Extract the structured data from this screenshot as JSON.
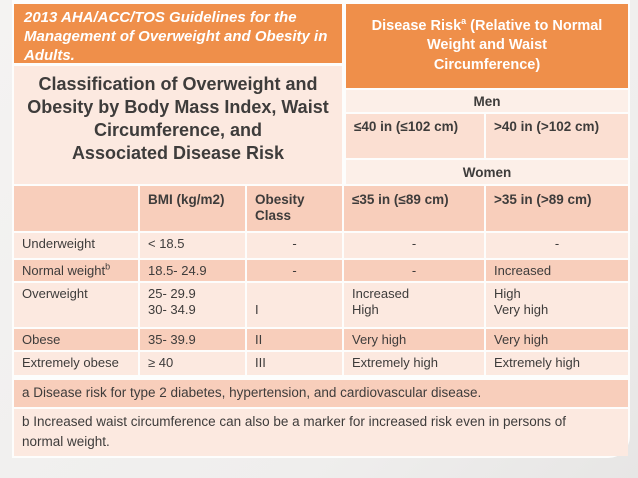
{
  "slide": {
    "banner": "2013 AHA/ACC/TOS Guidelines for the\nManagement of Overweight and Obesity in\nAdults.",
    "table_title": "Classification of Overweight and\nObesity by Body Mass Index, Waist\nCircumference, and\nAssociated Disease Risk"
  },
  "disease_risk_header": {
    "line1_pre": "Disease Risk",
    "line1_sup": "a",
    "line1_post": " (Relative to Normal",
    "line2": "Weight and Waist",
    "line3": "Circumference)"
  },
  "right_panel": {
    "men_label": "Men",
    "men_columns": [
      "≤40 in (≤102 cm)",
      ">40 in (>102 cm)"
    ],
    "women_label": "Women"
  },
  "table": {
    "headers": [
      "",
      "BMI (kg/m2)",
      "Obesity Class",
      "≤35 in (≤89 cm)",
      ">35 in (>89 cm)"
    ],
    "rows": [
      {
        "category": "Underweight",
        "category_sup": "",
        "cells": [
          "< 18.5",
          "-",
          "-",
          "-"
        ]
      },
      {
        "category": "Normal weight",
        "category_sup": "b",
        "cells": [
          "18.5- 24.9",
          "-",
          "-",
          "Increased"
        ]
      },
      {
        "category": "Overweight",
        "category_sup": "",
        "cells": [
          "25- 29.9\n30- 34.9",
          "\nI",
          "Increased\nHigh",
          "High\nVery high"
        ]
      },
      {
        "category": "Obese",
        "category_sup": "",
        "cells": [
          "35- 39.9",
          "II",
          "Very high",
          "Very high"
        ]
      },
      {
        "category": "Extremely obese",
        "category_sup": "",
        "cells": [
          "≥ 40",
          "III",
          "Extremely high",
          "Extremely high"
        ]
      }
    ]
  },
  "footnotes": {
    "a": "a Disease risk for type 2 diabetes, hypertension, and cardiovascular disease.",
    "b": "b Increased waist circumference can also be a marker for increased risk even in persons of\nnormal weight."
  },
  "colors": {
    "orange": "#ef8f4a",
    "row_dark": "#f8cebb",
    "row_light": "#fce9e0",
    "band_light": "#fcefe8",
    "waist_cell": "#fbdfd2",
    "text_dark": "#3e3c3b",
    "text_white": "#ffffff"
  }
}
